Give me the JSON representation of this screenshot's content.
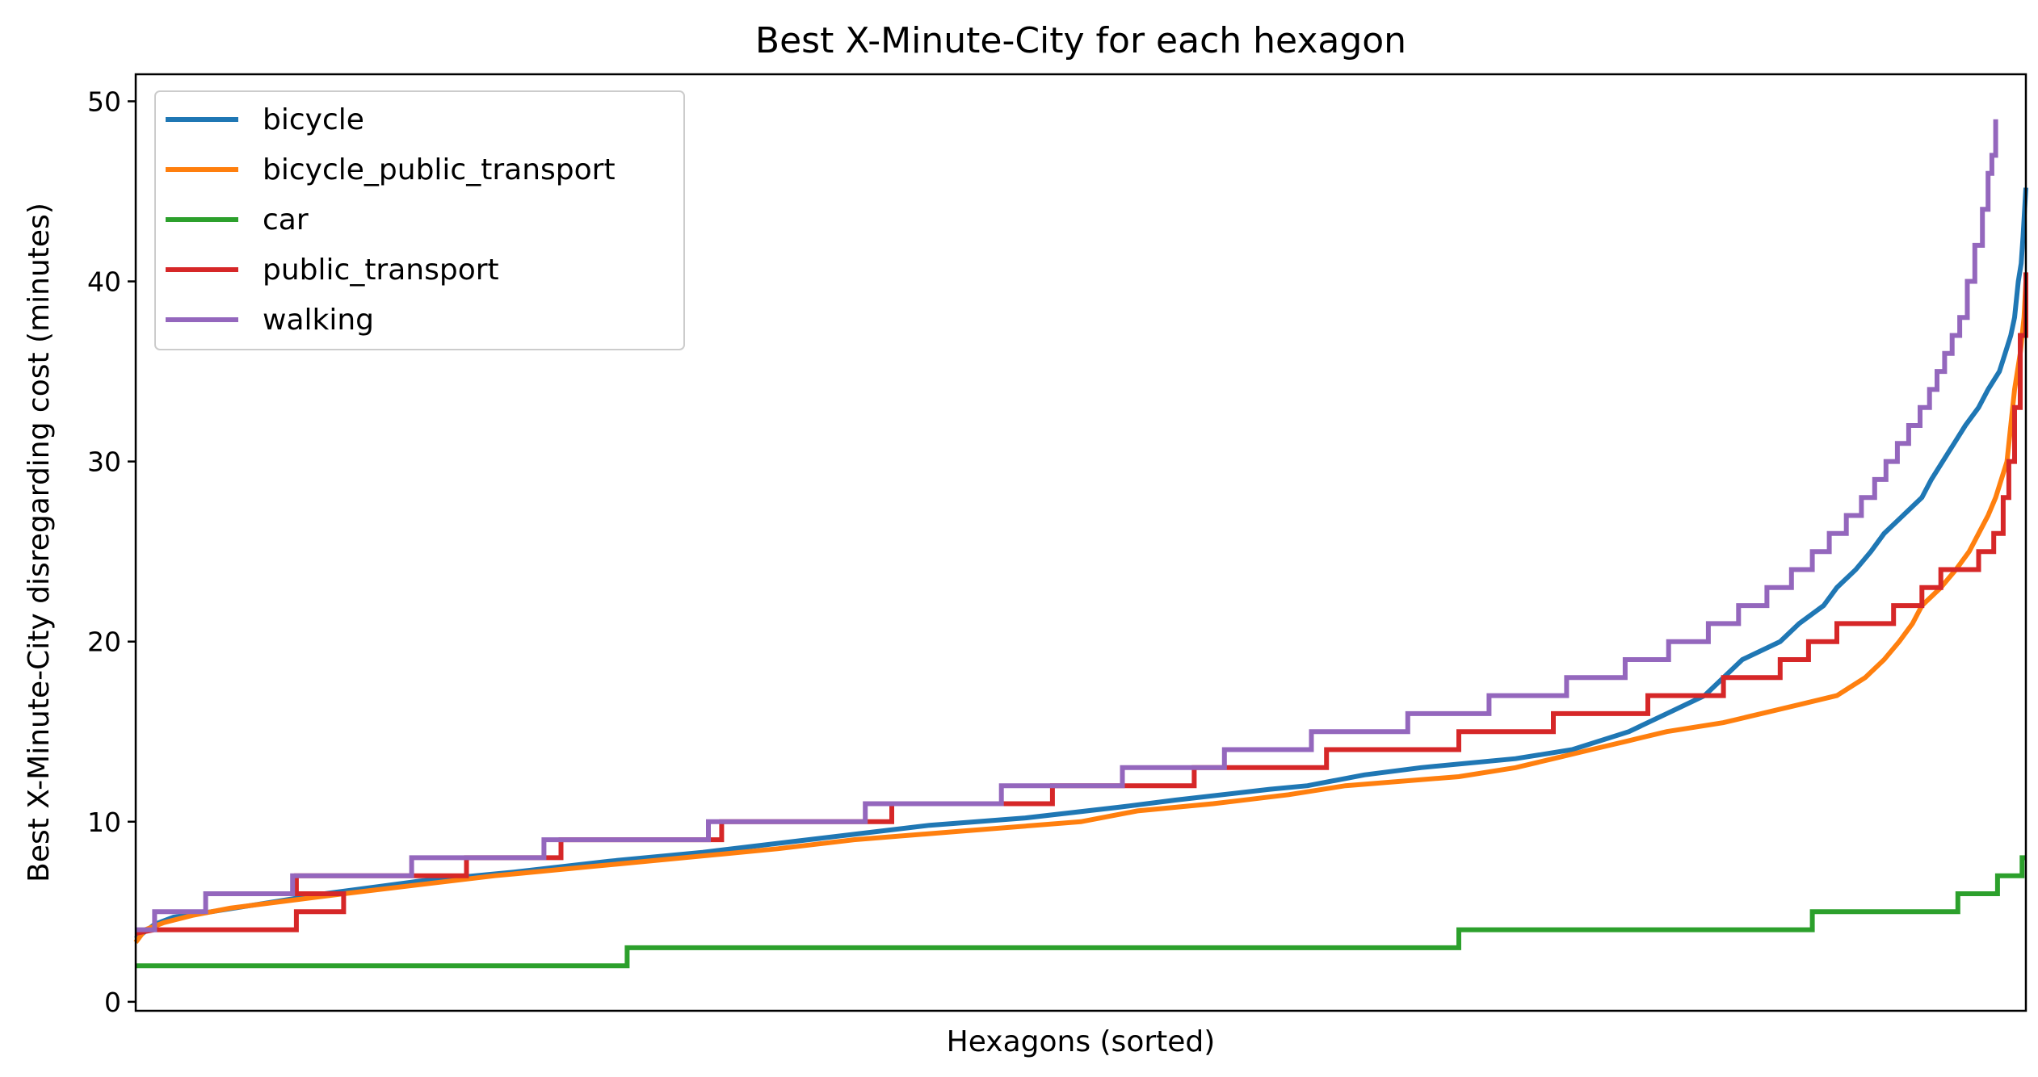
{
  "chart_data": {
    "type": "line",
    "title": "Best X-Minute-City for each hexagon",
    "xlabel": "Hexagons (sorted)",
    "ylabel": "Best X-Minute-City disregarding cost (minutes)",
    "xlim": [
      0,
      100
    ],
    "ylim": [
      -0.5,
      51.5
    ],
    "yticks": [
      0,
      10,
      20,
      30,
      40,
      50
    ],
    "xticks": [],
    "grid": false,
    "legend_position": "top-left",
    "series": [
      {
        "name": "bicycle",
        "color": "#1f77b4",
        "points": [
          [
            0,
            3.5
          ],
          [
            1,
            4.3
          ],
          [
            2,
            4.7
          ],
          [
            4,
            5.0
          ],
          [
            7,
            5.5
          ],
          [
            10,
            6.0
          ],
          [
            15,
            6.7
          ],
          [
            20,
            7.2
          ],
          [
            25,
            7.8
          ],
          [
            30,
            8.3
          ],
          [
            34,
            8.8
          ],
          [
            38,
            9.3
          ],
          [
            42,
            9.8
          ],
          [
            47,
            10.2
          ],
          [
            52,
            10.8
          ],
          [
            55,
            11.2
          ],
          [
            60,
            11.8
          ],
          [
            62,
            12.0
          ],
          [
            65,
            12.6
          ],
          [
            68,
            13.0
          ],
          [
            73,
            13.5
          ],
          [
            76,
            14.0
          ],
          [
            79,
            15.0
          ],
          [
            81,
            16.0
          ],
          [
            83,
            17.0
          ],
          [
            84,
            18.0
          ],
          [
            85,
            19.0
          ],
          [
            87,
            20.0
          ],
          [
            88,
            21.0
          ],
          [
            89.3,
            22.0
          ],
          [
            90,
            23.0
          ],
          [
            91,
            24.0
          ],
          [
            91.8,
            25.0
          ],
          [
            92.5,
            26.0
          ],
          [
            93.5,
            27.0
          ],
          [
            94.5,
            28.0
          ],
          [
            95,
            29.0
          ],
          [
            95.6,
            30.0
          ],
          [
            96.2,
            31.0
          ],
          [
            96.8,
            32.0
          ],
          [
            97.5,
            33.0
          ],
          [
            98,
            34.0
          ],
          [
            98.6,
            35.0
          ],
          [
            98.9,
            36.0
          ],
          [
            99.2,
            37.0
          ],
          [
            99.4,
            38.0
          ],
          [
            99.6,
            40.0
          ],
          [
            99.75,
            41.0
          ],
          [
            99.85,
            42.5
          ],
          [
            100,
            45.2
          ]
        ]
      },
      {
        "name": "bicycle_public_transport",
        "color": "#ff7f0e",
        "points": [
          [
            0,
            3.3
          ],
          [
            0.5,
            4.0
          ],
          [
            1.5,
            4.4
          ],
          [
            3,
            4.8
          ],
          [
            5,
            5.2
          ],
          [
            8,
            5.6
          ],
          [
            11,
            6.0
          ],
          [
            15,
            6.5
          ],
          [
            19,
            7.0
          ],
          [
            24,
            7.5
          ],
          [
            29,
            8.0
          ],
          [
            34,
            8.5
          ],
          [
            38,
            9.0
          ],
          [
            44,
            9.5
          ],
          [
            50,
            10.0
          ],
          [
            53,
            10.6
          ],
          [
            57,
            11.0
          ],
          [
            61,
            11.5
          ],
          [
            64,
            12.0
          ],
          [
            70,
            12.5
          ],
          [
            73,
            13.0
          ],
          [
            75,
            13.5
          ],
          [
            77,
            14.0
          ],
          [
            79,
            14.5
          ],
          [
            81,
            15.0
          ],
          [
            84,
            15.5
          ],
          [
            86,
            16.0
          ],
          [
            88,
            16.5
          ],
          [
            90,
            17.0
          ],
          [
            91.5,
            18.0
          ],
          [
            92.5,
            19.0
          ],
          [
            93.3,
            20.0
          ],
          [
            94,
            21.0
          ],
          [
            94.5,
            22.0
          ],
          [
            95.5,
            23.0
          ],
          [
            96.3,
            24.0
          ],
          [
            97,
            25.0
          ],
          [
            97.5,
            26.0
          ],
          [
            98,
            27.0
          ],
          [
            98.4,
            28.0
          ],
          [
            98.7,
            29.0
          ],
          [
            99,
            30.0
          ],
          [
            99.2,
            32.0
          ],
          [
            99.4,
            34.0
          ],
          [
            99.7,
            36.0
          ],
          [
            99.9,
            38.0
          ],
          [
            100,
            40.0
          ]
        ]
      },
      {
        "name": "car",
        "color": "#2ca02c",
        "points": [
          [
            0,
            2.0
          ],
          [
            26,
            2.0
          ],
          [
            26,
            3.0
          ],
          [
            70,
            3.0
          ],
          [
            70,
            4.0
          ],
          [
            88.7,
            4.0
          ],
          [
            88.7,
            5.0
          ],
          [
            96.4,
            5.0
          ],
          [
            96.4,
            6.0
          ],
          [
            98.5,
            6.0
          ],
          [
            98.5,
            7.0
          ],
          [
            99.8,
            7.0
          ],
          [
            99.8,
            8.0
          ],
          [
            100,
            8.0
          ]
        ]
      },
      {
        "name": "public_transport",
        "color": "#d62728",
        "points": [
          [
            0,
            3.8
          ],
          [
            1,
            4.0
          ],
          [
            8.5,
            4.0
          ],
          [
            8.5,
            5.0
          ],
          [
            11,
            5.0
          ],
          [
            11,
            6.0
          ],
          [
            8.5,
            6.0
          ],
          [
            8.5,
            7.0
          ],
          [
            17.5,
            7.0
          ],
          [
            17.5,
            8.0
          ],
          [
            22.5,
            8.0
          ],
          [
            22.5,
            9.0
          ],
          [
            31,
            9.0
          ],
          [
            31,
            10.0
          ],
          [
            40,
            10.0
          ],
          [
            40,
            11.0
          ],
          [
            48.5,
            11.0
          ],
          [
            48.5,
            12.0
          ],
          [
            56,
            12.0
          ],
          [
            56,
            13.0
          ],
          [
            63,
            13.0
          ],
          [
            63,
            14.0
          ],
          [
            70,
            14.0
          ],
          [
            70,
            15.0
          ],
          [
            75,
            15.0
          ],
          [
            75,
            16.0
          ],
          [
            80,
            16.0
          ],
          [
            80,
            17.0
          ],
          [
            84,
            17.0
          ],
          [
            84,
            18.0
          ],
          [
            87,
            18.0
          ],
          [
            87,
            19.0
          ],
          [
            88.5,
            19.0
          ],
          [
            88.5,
            20.0
          ],
          [
            90,
            20.0
          ],
          [
            90,
            21.0
          ],
          [
            93,
            21.0
          ],
          [
            93,
            22.0
          ],
          [
            94.5,
            22.0
          ],
          [
            94.5,
            23.0
          ],
          [
            95.5,
            23.0
          ],
          [
            95.5,
            24.0
          ],
          [
            97.5,
            24.0
          ],
          [
            97.5,
            25.0
          ],
          [
            98.3,
            25.0
          ],
          [
            98.3,
            26.0
          ],
          [
            98.8,
            26.0
          ],
          [
            98.8,
            28.0
          ],
          [
            99.1,
            28.0
          ],
          [
            99.1,
            30.0
          ],
          [
            99.4,
            30.0
          ],
          [
            99.4,
            33.0
          ],
          [
            99.7,
            33.0
          ],
          [
            99.7,
            37.0
          ],
          [
            100,
            37.0
          ],
          [
            100,
            40.5
          ]
        ]
      },
      {
        "name": "walking",
        "color": "#9467bd",
        "points": [
          [
            0,
            4.0
          ],
          [
            1,
            4.0
          ],
          [
            1,
            5.0
          ],
          [
            3.7,
            5.0
          ],
          [
            3.7,
            6.0
          ],
          [
            8.3,
            6.0
          ],
          [
            8.3,
            7.0
          ],
          [
            14.6,
            7.0
          ],
          [
            14.6,
            8.0
          ],
          [
            21.6,
            8.0
          ],
          [
            21.6,
            9.0
          ],
          [
            30.3,
            9.0
          ],
          [
            30.3,
            10.0
          ],
          [
            38.6,
            10.0
          ],
          [
            38.6,
            11.0
          ],
          [
            45.8,
            11.0
          ],
          [
            45.8,
            12.0
          ],
          [
            52.2,
            12.0
          ],
          [
            52.2,
            13.0
          ],
          [
            57.6,
            13.0
          ],
          [
            57.6,
            14.0
          ],
          [
            62.2,
            14.0
          ],
          [
            62.2,
            15.0
          ],
          [
            67.3,
            15.0
          ],
          [
            67.3,
            16.0
          ],
          [
            71.6,
            16.0
          ],
          [
            71.6,
            17.0
          ],
          [
            75.7,
            17.0
          ],
          [
            75.7,
            18.0
          ],
          [
            78.8,
            18.0
          ],
          [
            78.8,
            19.0
          ],
          [
            81.1,
            19.0
          ],
          [
            81.1,
            20.0
          ],
          [
            83.2,
            20.0
          ],
          [
            83.2,
            21.0
          ],
          [
            84.8,
            21.0
          ],
          [
            84.8,
            22.0
          ],
          [
            86.3,
            22.0
          ],
          [
            86.3,
            23.0
          ],
          [
            87.6,
            23.0
          ],
          [
            87.6,
            24.0
          ],
          [
            88.7,
            24.0
          ],
          [
            88.7,
            25.0
          ],
          [
            89.6,
            25.0
          ],
          [
            89.6,
            26.0
          ],
          [
            90.5,
            26.0
          ],
          [
            90.5,
            27.0
          ],
          [
            91.3,
            27.0
          ],
          [
            91.3,
            28.0
          ],
          [
            92,
            28.0
          ],
          [
            92,
            29.0
          ],
          [
            92.6,
            29.0
          ],
          [
            92.6,
            30.0
          ],
          [
            93.2,
            30.0
          ],
          [
            93.2,
            31.0
          ],
          [
            93.8,
            31.0
          ],
          [
            93.8,
            32.0
          ],
          [
            94.4,
            32.0
          ],
          [
            94.4,
            33.0
          ],
          [
            94.9,
            33.0
          ],
          [
            94.9,
            34.0
          ],
          [
            95.3,
            34.0
          ],
          [
            95.3,
            35.0
          ],
          [
            95.7,
            35.0
          ],
          [
            95.7,
            36.0
          ],
          [
            96.1,
            36.0
          ],
          [
            96.1,
            37.0
          ],
          [
            96.5,
            37.0
          ],
          [
            96.5,
            38.0
          ],
          [
            96.9,
            38.0
          ],
          [
            96.9,
            40.0
          ],
          [
            97.3,
            40.0
          ],
          [
            97.3,
            42.0
          ],
          [
            97.7,
            42.0
          ],
          [
            97.7,
            44.0
          ],
          [
            98,
            44.0
          ],
          [
            98,
            46.0
          ],
          [
            98.2,
            46.0
          ],
          [
            98.2,
            47.0
          ],
          [
            98.4,
            47.0
          ],
          [
            98.4,
            49.0
          ]
        ]
      }
    ]
  }
}
